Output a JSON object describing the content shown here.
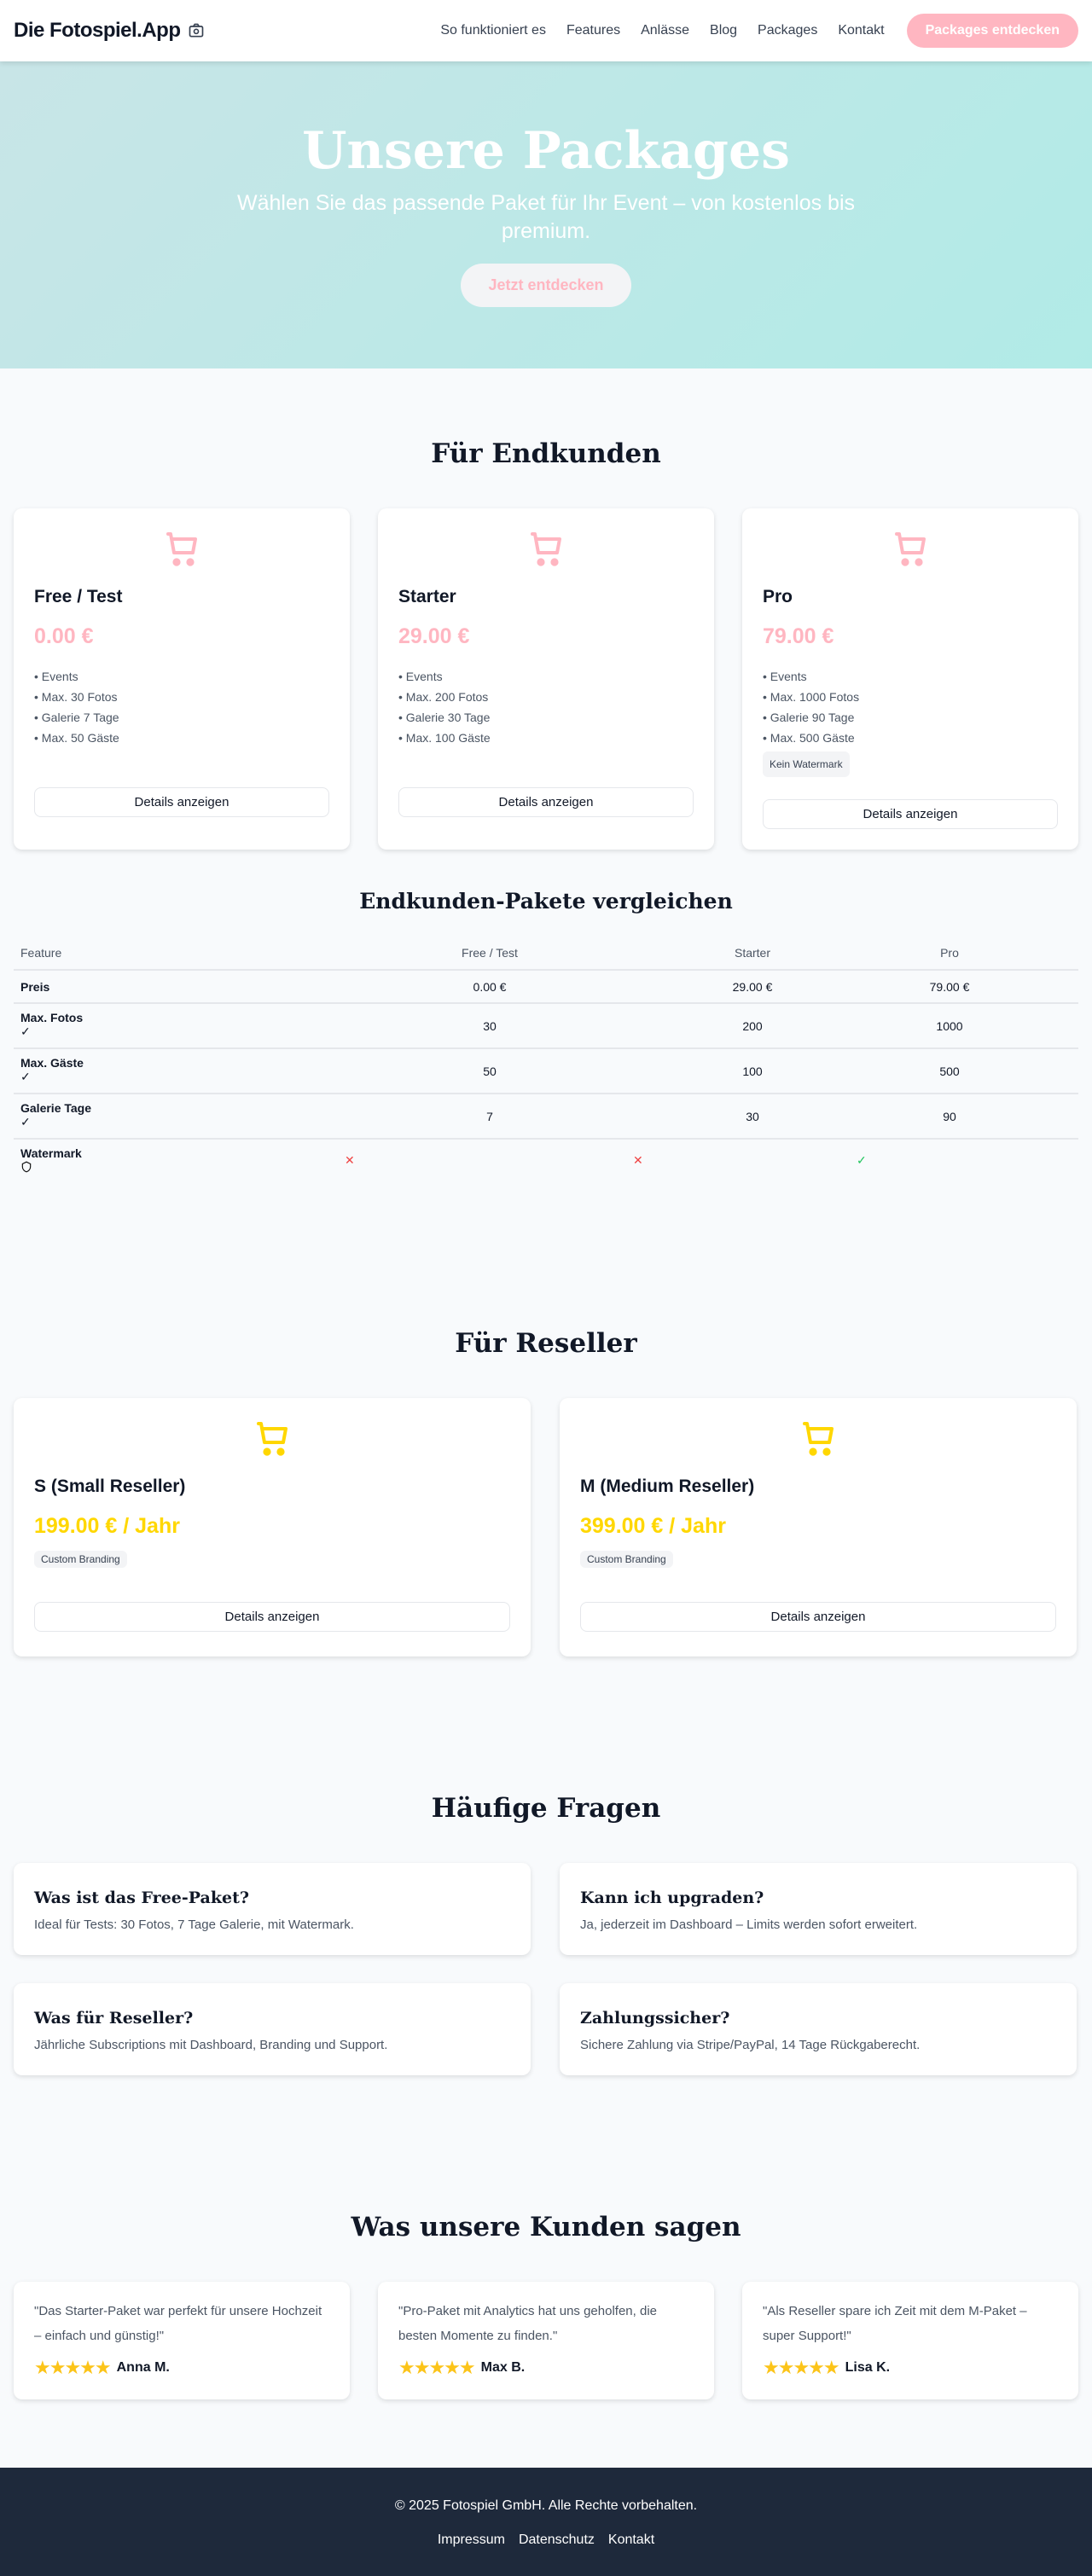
{
  "nav": {
    "logo": "Die Fotospiel.App",
    "links": [
      "So funktioniert es",
      "Features",
      "Anlässe",
      "Blog",
      "Packages",
      "Kontakt"
    ],
    "cta": "Packages entdecken"
  },
  "hero": {
    "title": "Unsere Packages",
    "subtitle": "Wählen Sie das passende Paket für Ihr Event – von kostenlos bis premium.",
    "button": "Jetzt entdecken"
  },
  "colors": {
    "accent": "#ffb6c1",
    "reseller": "#ffd700",
    "footer": "#1e293b"
  },
  "endkunden": {
    "title": "Für Endkunden",
    "details_label": "Details anzeigen",
    "packages": [
      {
        "name": "Free / Test",
        "price": "0.00 €",
        "features": [
          "• Events",
          "• Max. 30 Fotos",
          "• Galerie 7 Tage",
          "• Max. 50 Gäste"
        ],
        "badge": null
      },
      {
        "name": "Starter",
        "price": "29.00 €",
        "features": [
          "• Events",
          "• Max. 200 Fotos",
          "• Galerie 30 Tage",
          "• Max. 100 Gäste"
        ],
        "badge": null
      },
      {
        "name": "Pro",
        "price": "79.00 €",
        "features": [
          "• Events",
          "• Max. 1000 Fotos",
          "• Galerie 90 Tage",
          "• Max. 500 Gäste"
        ],
        "badge": "Kein Watermark"
      }
    ]
  },
  "compare": {
    "title": "Endkunden-Pakete vergleichen",
    "headers": [
      "Feature",
      "Free / Test",
      "Starter",
      "Pro"
    ],
    "rows": [
      {
        "feature": "Preis",
        "values": [
          "0.00 €",
          "29.00 €",
          "79.00 €"
        ],
        "icon": null
      },
      {
        "feature": "Max. Fotos",
        "values": [
          "30",
          "200",
          "1000"
        ],
        "icon": "check-icon"
      },
      {
        "feature": "Max. Gäste",
        "values": [
          "50",
          "100",
          "500"
        ],
        "icon": "check-icon"
      },
      {
        "feature": "Galerie Tage",
        "values": [
          "7",
          "30",
          "90"
        ],
        "icon": "check-icon"
      }
    ],
    "watermark": {
      "feature": "Watermark",
      "icon": "shield-icon",
      "values": [
        false,
        false,
        true
      ]
    }
  },
  "reseller": {
    "title": "Für Reseller",
    "details_label": "Details anzeigen",
    "packages": [
      {
        "name": "S (Small Reseller)",
        "price": "199.00 € / Jahr",
        "badge": "Custom Branding"
      },
      {
        "name": "M (Medium Reseller)",
        "price": "399.00 € / Jahr",
        "badge": "Custom Branding"
      }
    ]
  },
  "faq": {
    "title": "Häufige Fragen",
    "items": [
      {
        "q": "Was ist das Free-Paket?",
        "a": "Ideal für Tests: 30 Fotos, 7 Tage Galerie, mit Watermark."
      },
      {
        "q": "Kann ich upgraden?",
        "a": "Ja, jederzeit im Dashboard – Limits werden sofort erweitert."
      },
      {
        "q": "Was für Reseller?",
        "a": "Jährliche Subscriptions mit Dashboard, Branding und Support."
      },
      {
        "q": "Zahlungssicher?",
        "a": "Sichere Zahlung via Stripe/PayPal, 14 Tage Rückgaberecht."
      }
    ]
  },
  "testimonials": {
    "title": "Was unsere Kunden sagen",
    "items": [
      {
        "quote": "\"Das Starter-Paket war perfekt für unsere Hochzeit – einfach und günstig!\"",
        "name": "Anna M.",
        "rating": 5
      },
      {
        "quote": "\"Pro-Paket mit Analytics hat uns geholfen, die besten Momente zu finden.\"",
        "name": "Max B.",
        "rating": 5
      },
      {
        "quote": "\"Als Reseller spare ich Zeit mit dem M-Paket – super Support!\"",
        "name": "Lisa K.",
        "rating": 5
      }
    ]
  },
  "footer": {
    "copyright": "© 2025 Fotospiel GmbH. Alle Rechte vorbehalten.",
    "links": [
      "Impressum",
      "Datenschutz",
      "Kontakt"
    ]
  }
}
